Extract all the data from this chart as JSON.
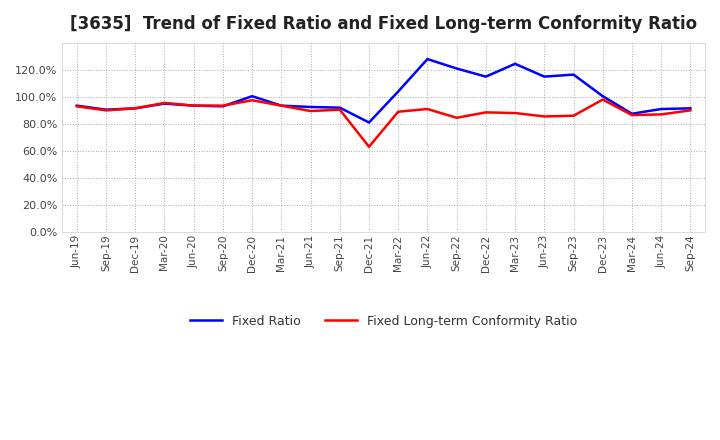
{
  "title": "[3635]  Trend of Fixed Ratio and Fixed Long-term Conformity Ratio",
  "x_labels": [
    "Jun-19",
    "Sep-19",
    "Dec-19",
    "Mar-20",
    "Jun-20",
    "Sep-20",
    "Dec-20",
    "Mar-21",
    "Jun-21",
    "Sep-21",
    "Dec-21",
    "Mar-22",
    "Jun-22",
    "Sep-22",
    "Dec-22",
    "Mar-23",
    "Jun-23",
    "Sep-23",
    "Dec-23",
    "Mar-24",
    "Jun-24",
    "Sep-24"
  ],
  "fixed_ratio": [
    93.5,
    90.5,
    91.5,
    95.0,
    93.5,
    93.0,
    100.5,
    93.5,
    92.5,
    92.0,
    81.0,
    104.0,
    128.0,
    121.0,
    115.0,
    124.5,
    115.0,
    116.5,
    100.5,
    87.5,
    91.0,
    91.5
  ],
  "fixed_lt_ratio": [
    93.0,
    90.0,
    91.5,
    95.5,
    93.5,
    93.5,
    97.5,
    93.5,
    89.5,
    90.5,
    63.0,
    89.0,
    91.0,
    84.5,
    88.5,
    88.0,
    85.5,
    86.0,
    98.0,
    86.5,
    87.0,
    90.0
  ],
  "fixed_ratio_color": "#0000ff",
  "fixed_lt_ratio_color": "#ff0000",
  "background_color": "#ffffff",
  "plot_bg_color": "#ffffff",
  "grid_color": "#aaaaaa",
  "ylim": [
    0,
    140
  ],
  "yticks": [
    0,
    20,
    40,
    60,
    80,
    100,
    120
  ],
  "title_fontsize": 12,
  "legend_fixed_ratio": "Fixed Ratio",
  "legend_fixed_lt_ratio": "Fixed Long-term Conformity Ratio"
}
